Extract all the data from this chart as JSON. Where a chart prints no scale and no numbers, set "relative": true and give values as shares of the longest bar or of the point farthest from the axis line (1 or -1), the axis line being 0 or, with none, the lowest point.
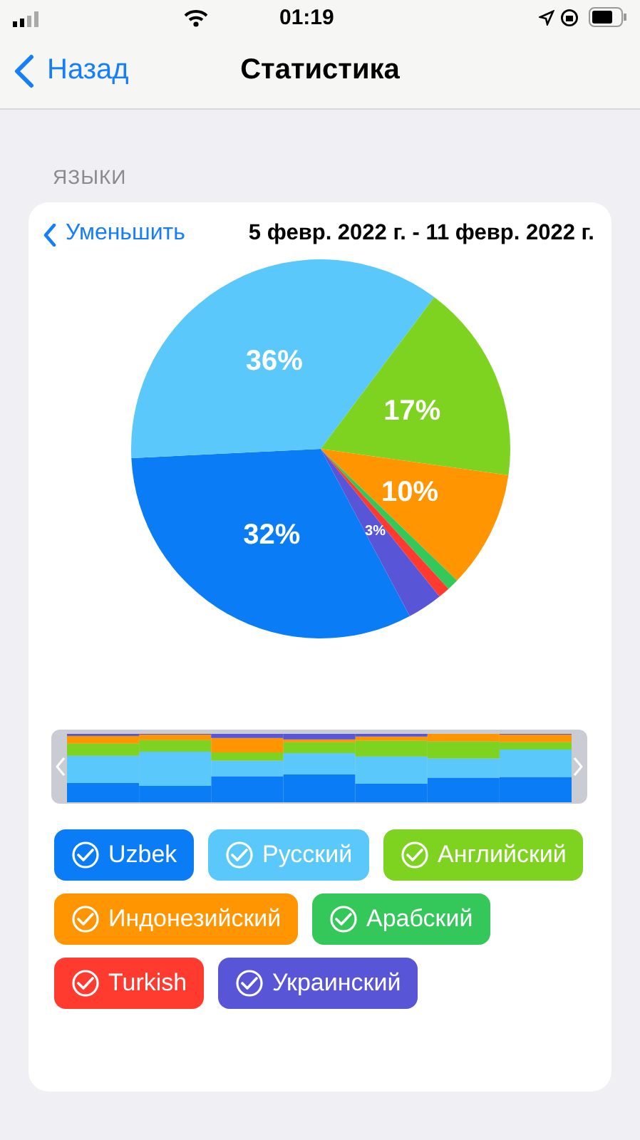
{
  "chart_data": [
    {
      "type": "pie",
      "title": "5 февр. 2022 г. - 11 февр. 2022 г.",
      "subtitle": "ЯЗЫКИ",
      "annotations": [
        "01:19",
        "Назад",
        "Статистика",
        "Уменьшить"
      ],
      "categories": [
        "Uzbek",
        "Русский",
        "Английский",
        "Индонезийский",
        "Арабский",
        "Turkish",
        "Украинский"
      ],
      "values": [
        32,
        36,
        17,
        10,
        1,
        1,
        3
      ],
      "value_labels": [
        "32%",
        "36%",
        "17%",
        "10%",
        null,
        null,
        "3%"
      ],
      "colors": [
        "#0a7cf5",
        "#5ac8fa",
        "#7ed321",
        "#ff9500",
        "#34c759",
        "#ff3b30",
        "#5856d6"
      ],
      "legend": "bottom"
    },
    {
      "type": "bar",
      "stacked": true,
      "relative": true,
      "categories": [
        null,
        null,
        null,
        null,
        null,
        null,
        null
      ],
      "series": [
        {
          "color": "#0a7cf5",
          "values": [
            0.28,
            0.24,
            0.38,
            0.41,
            0.27,
            0.36,
            0.37
          ]
        },
        {
          "color": "#5ac8fa",
          "values": [
            0.4,
            0.5,
            0.23,
            0.31,
            0.4,
            0.28,
            0.4
          ]
        },
        {
          "color": "#7ed321",
          "values": [
            0.18,
            0.17,
            0.12,
            0.16,
            0.23,
            0.25,
            0.11
          ]
        },
        {
          "color": "#ff9500",
          "values": [
            0.1,
            0.08,
            0.21,
            0.04,
            0.06,
            0.11,
            0.11
          ]
        },
        {
          "color": "#34c759",
          "values": [
            0.01,
            0,
            0,
            0,
            0,
            0,
            0
          ]
        },
        {
          "color": "#ff3b30",
          "values": [
            0.01,
            0,
            0,
            0,
            0,
            0,
            0
          ]
        },
        {
          "color": "#5856d6",
          "values": [
            0.02,
            0.01,
            0.06,
            0.08,
            0.04,
            0,
            0.01
          ]
        }
      ]
    }
  ]
}
